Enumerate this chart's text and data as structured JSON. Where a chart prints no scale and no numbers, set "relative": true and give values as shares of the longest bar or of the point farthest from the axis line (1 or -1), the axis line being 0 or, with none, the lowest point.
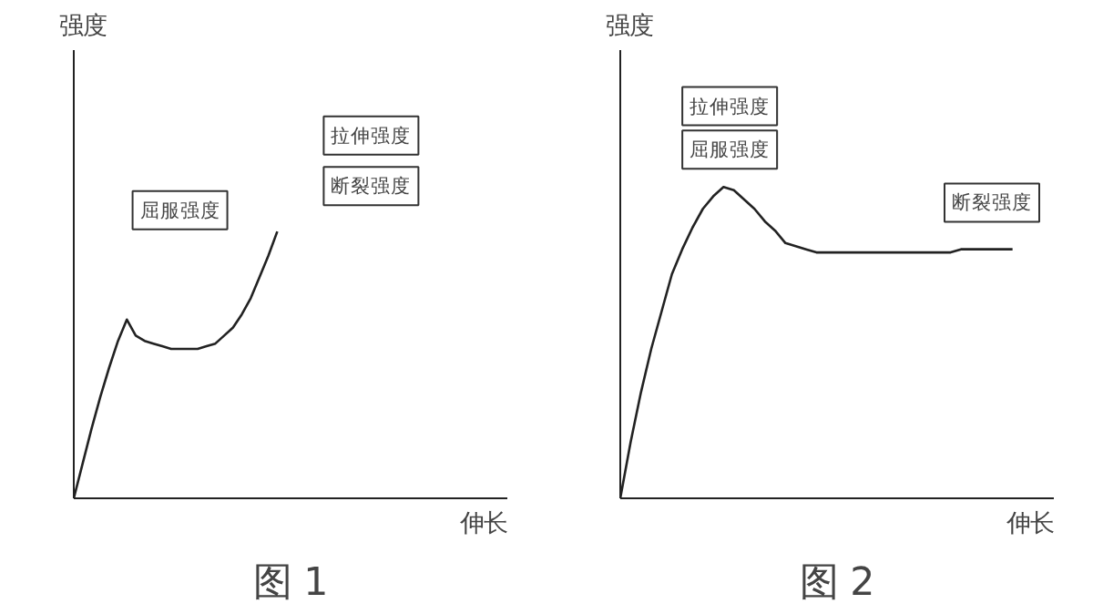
{
  "chart_data": [
    {
      "type": "line",
      "title": "图 1",
      "xlabel": "伸长",
      "ylabel": "强度",
      "relative": true,
      "categories": [
        null,
        null,
        null,
        null,
        null,
        null,
        null,
        null,
        null,
        null,
        null,
        null,
        null,
        null,
        null,
        null,
        null,
        null,
        null,
        null,
        null,
        null,
        null,
        null,
        null,
        null,
        null,
        null,
        null,
        null,
        null,
        null,
        null,
        null,
        null,
        null,
        null,
        null,
        null,
        null,
        null,
        null,
        null,
        null,
        null,
        null,
        null,
        null,
        null,
        null
      ],
      "series": [
        {
          "color": "#222222",
          "values": [
            0,
            0.13,
            0.26,
            0.38,
            0.49,
            0.59,
            0.67,
            0.61,
            0.59,
            0.58,
            0.57,
            0.56,
            0.56,
            0.56,
            0.56,
            0.57,
            0.58,
            0.61,
            0.64,
            0.69,
            0.75,
            0.83,
            0.91,
            1,
            null,
            null,
            null,
            null,
            null,
            null,
            null,
            null,
            null,
            null,
            null,
            null,
            null,
            null,
            null,
            null,
            null,
            null,
            null,
            null,
            null,
            null,
            null,
            null,
            null,
            null
          ]
        }
      ],
      "annotations": [
        "屈服强度",
        "拉伸强度",
        "断裂强度"
      ]
    },
    {
      "type": "line",
      "title": "图 2",
      "xlabel": "伸长",
      "ylabel": "强度",
      "relative": true,
      "categories": [
        null,
        null,
        null,
        null,
        null,
        null,
        null,
        null,
        null,
        null,
        null,
        null,
        null,
        null,
        null,
        null,
        null,
        null,
        null,
        null,
        null,
        null,
        null,
        null,
        null,
        null,
        null,
        null,
        null,
        null,
        null,
        null,
        null,
        null,
        null,
        null,
        null,
        null,
        null,
        null,
        null,
        null,
        null
      ],
      "series": [
        {
          "color": "#222222",
          "values": [
            0,
            0.18,
            0.34,
            0.48,
            0.6,
            0.72,
            0.8,
            0.87,
            0.93,
            0.97,
            1,
            0.99,
            0.96,
            0.93,
            0.89,
            0.86,
            0.82,
            0.81,
            0.8,
            0.79,
            0.79,
            0.79,
            0.79,
            0.79,
            0.79,
            0.79,
            0.79,
            0.79,
            0.79,
            0.79,
            0.79,
            0.79,
            0.79,
            0.8,
            0.8,
            0.8,
            0.8,
            0.8,
            0.8,
            null,
            null,
            null,
            null
          ]
        }
      ],
      "annotations": [
        "拉伸强度",
        "屈服强度",
        "断裂强度"
      ]
    }
  ]
}
